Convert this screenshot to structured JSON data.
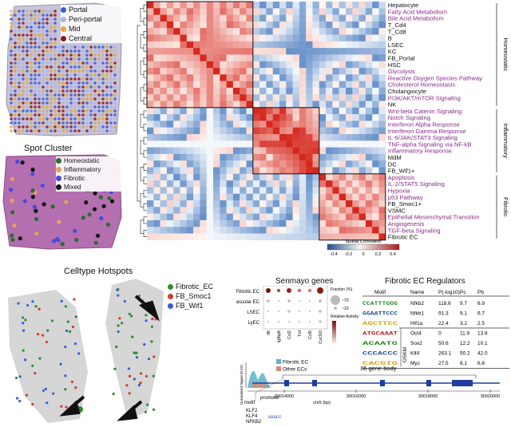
{
  "zonation_legend": [
    {
      "label": "Portal",
      "color": "#3a5bd9"
    },
    {
      "label": "Peri-portal",
      "color": "#a9b4f0"
    },
    {
      "label": "Mid",
      "color": "#e0a93a"
    },
    {
      "label": "Central",
      "color": "#8b1a1a"
    }
  ],
  "spot_cluster": {
    "title": "Spot Cluster",
    "legend": [
      {
        "label": "Homeostatic",
        "color": "#2e6b2e"
      },
      {
        "label": "Inflammatory",
        "color": "#e8a25a"
      },
      {
        "label": "Fibrotic",
        "color": "#4a4adf"
      },
      {
        "label": "Mixed",
        "color": "#111111"
      }
    ]
  },
  "heatmap": {
    "row_labels": [
      {
        "text": "Hepatocyte",
        "pathway": false
      },
      {
        "text": "Fatty Acid Metabolism",
        "pathway": true
      },
      {
        "text": "Bile Acid Metabolism",
        "pathway": true
      },
      {
        "text": "T_Cd4",
        "pathway": false
      },
      {
        "text": "T_Cd8",
        "pathway": false
      },
      {
        "text": "B",
        "pathway": false
      },
      {
        "text": "LSEC",
        "pathway": false
      },
      {
        "text": "KC",
        "pathway": false
      },
      {
        "text": "FB_Portal",
        "pathway": false
      },
      {
        "text": "HSC",
        "pathway": false
      },
      {
        "text": "Glycolysis",
        "pathway": true
      },
      {
        "text": "Reactive Oxygen Species Pathway",
        "pathway": true
      },
      {
        "text": "Cholesterol Homeostasis",
        "pathway": true
      },
      {
        "text": "Cholangiocyte",
        "pathway": false
      },
      {
        "text": "PI3K/AKT/mTOR Signaling",
        "pathway": true
      },
      {
        "text": "NK",
        "pathway": false
      },
      {
        "text": "Wnt-beta Catenin Signaling",
        "pathway": true
      },
      {
        "text": "Notch Signaling",
        "pathway": true
      },
      {
        "text": "Interferon Alpha Response",
        "pathway": true
      },
      {
        "text": "Interferon Gamma Response",
        "pathway": true
      },
      {
        "text": "IL-6/JAK/STAT3 Signaling",
        "pathway": true
      },
      {
        "text": "TNF-alpha Signaling via NF-kB",
        "pathway": true
      },
      {
        "text": "Inflammatory Response",
        "pathway": true
      },
      {
        "text": "MdM",
        "pathway": false
      },
      {
        "text": "DC",
        "pathway": false
      },
      {
        "text": "FB_Wif1+",
        "pathway": false
      },
      {
        "text": "Apoptosis",
        "pathway": true
      },
      {
        "text": "IL-2/STAT5 Signaling",
        "pathway": true
      },
      {
        "text": "Hypoxia",
        "pathway": true
      },
      {
        "text": "p53 Pathway",
        "pathway": true
      },
      {
        "text": "FB_Smoc1+",
        "pathway": false
      },
      {
        "text": "VSMC",
        "pathway": false
      },
      {
        "text": "Epithelial Mesenchymal Transition",
        "pathway": true
      },
      {
        "text": "Angiogenesis",
        "pathway": true
      },
      {
        "text": "TGF-beta Signaling",
        "pathway": true
      },
      {
        "text": "Fibrotic EC",
        "pathway": false
      }
    ],
    "groups": [
      "Homeostatic",
      "Inflammatory",
      "Fibrotic"
    ],
    "colorbar": {
      "title": "Spatial Correlation",
      "ticks": [
        "-0.4",
        "-0.2",
        "0",
        "0.2",
        "0.4"
      ]
    }
  },
  "hotspots": {
    "title": "Celltype Hotspots",
    "legend": [
      {
        "label": "Fibrotic_EC",
        "color": "#2e8b2e"
      },
      {
        "label": "FB_Smoc1",
        "color": "#d23b2e"
      },
      {
        "label": "FB_Wif1",
        "color": "#3a5bd9"
      }
    ]
  },
  "senmayo": {
    "title": "Senmayo genes",
    "rows": [
      "Fibrotic EC",
      "Vascular EC",
      "LSEC",
      "LyEC"
    ],
    "cols": [
      "Il6",
      "Igfbp6",
      "Ccl2",
      "Tnf",
      "Ccl5",
      "Cxcl10"
    ],
    "fraction_title": "Fraction (%)",
    "fraction_ticks": [
      "70",
      "10"
    ],
    "activity_title": "Relative Activity"
  },
  "regulators": {
    "title": "Fibrotic EC Regulators",
    "headers": [
      "Motif",
      "Name",
      "P(-log10)",
      "Pc",
      "Pb"
    ],
    "rows": [
      {
        "motif": "CCATTTGGG",
        "name": "Nfkb2",
        "p": "118.6",
        "pc": "9.7",
        "pb": "6.9"
      },
      {
        "motif": "GGAATTCCC",
        "name": "Nfkb1",
        "p": "91.3",
        "pc": "9.1",
        "pb": "6.7"
      },
      {
        "motif": "AGCTTCC",
        "name": "Hif1a",
        "p": "22.4",
        "pc": "3.2",
        "pb": "2.5"
      },
      {
        "motif": "ATGCAAAT",
        "name": "Oct4",
        "p": "0",
        "pc": "11.9",
        "pb": "13.8"
      },
      {
        "motif": "ACAATG",
        "name": "Sox2",
        "p": "50.6",
        "pc": "12.2",
        "pb": "10.1"
      },
      {
        "motif": "CCCACCC",
        "name": "Klf4",
        "p": "263.1",
        "pc": "50.2",
        "pb": "42.0"
      },
      {
        "motif": "CACGTG",
        "name": "Myc",
        "p": "27.5",
        "pc": "8.1",
        "pb": "6.8"
      }
    ],
    "osmk_label": "OSKM"
  },
  "track": {
    "ylabel": "Normalized Signal (0-52)",
    "legend": [
      {
        "label": "Fibrotic EC",
        "color": "#5ab4c8"
      },
      {
        "label": "Other ECs",
        "color": "#d9897a"
      }
    ],
    "gene_body": "Il6 gene body",
    "axis_ticks": [
      "30014000",
      "30016000",
      "30018000",
      "30020000"
    ],
    "axis_label": "chr5 (bp)",
    "motif_label": "motif",
    "promoter_label": "promoter",
    "tf_labels": [
      "KLF2",
      "KLF4",
      "NFKB2"
    ]
  }
}
